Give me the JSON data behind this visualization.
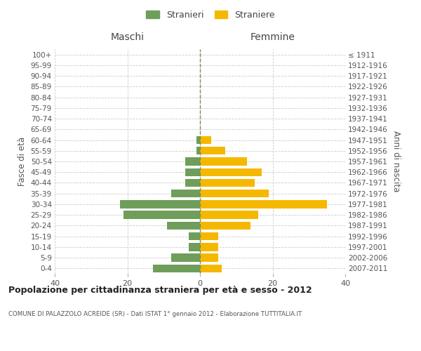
{
  "age_groups": [
    "0-4",
    "5-9",
    "10-14",
    "15-19",
    "20-24",
    "25-29",
    "30-34",
    "35-39",
    "40-44",
    "45-49",
    "50-54",
    "55-59",
    "60-64",
    "65-69",
    "70-74",
    "75-79",
    "80-84",
    "85-89",
    "90-94",
    "95-99",
    "100+"
  ],
  "birth_years": [
    "2007-2011",
    "2002-2006",
    "1997-2001",
    "1992-1996",
    "1987-1991",
    "1982-1986",
    "1977-1981",
    "1972-1976",
    "1967-1971",
    "1962-1966",
    "1957-1961",
    "1952-1956",
    "1947-1951",
    "1942-1946",
    "1937-1941",
    "1932-1936",
    "1927-1931",
    "1922-1926",
    "1917-1921",
    "1912-1916",
    "≤ 1911"
  ],
  "maschi": [
    13,
    8,
    3,
    3,
    9,
    21,
    22,
    8,
    4,
    4,
    4,
    1,
    1,
    0,
    0,
    0,
    0,
    0,
    0,
    0,
    0
  ],
  "femmine": [
    6,
    5,
    5,
    5,
    14,
    16,
    35,
    19,
    15,
    17,
    13,
    7,
    3,
    0,
    0,
    0,
    0,
    0,
    0,
    0,
    0
  ],
  "maschi_color": "#6e9e5a",
  "femmine_color": "#f5b800",
  "title": "Popolazione per cittadinanza straniera per età e sesso - 2012",
  "subtitle": "COMUNE DI PALAZZOLO ACREIDE (SR) - Dati ISTAT 1° gennaio 2012 - Elaborazione TUTTITALIA.IT",
  "xlabel_left": "Maschi",
  "xlabel_right": "Femmine",
  "ylabel_left": "Fasce di età",
  "ylabel_right": "Anni di nascita",
  "legend_maschi": "Stranieri",
  "legend_femmine": "Straniere",
  "xlim": 40,
  "background_color": "#ffffff",
  "grid_color": "#cccccc",
  "dashed_line_color": "#888855"
}
